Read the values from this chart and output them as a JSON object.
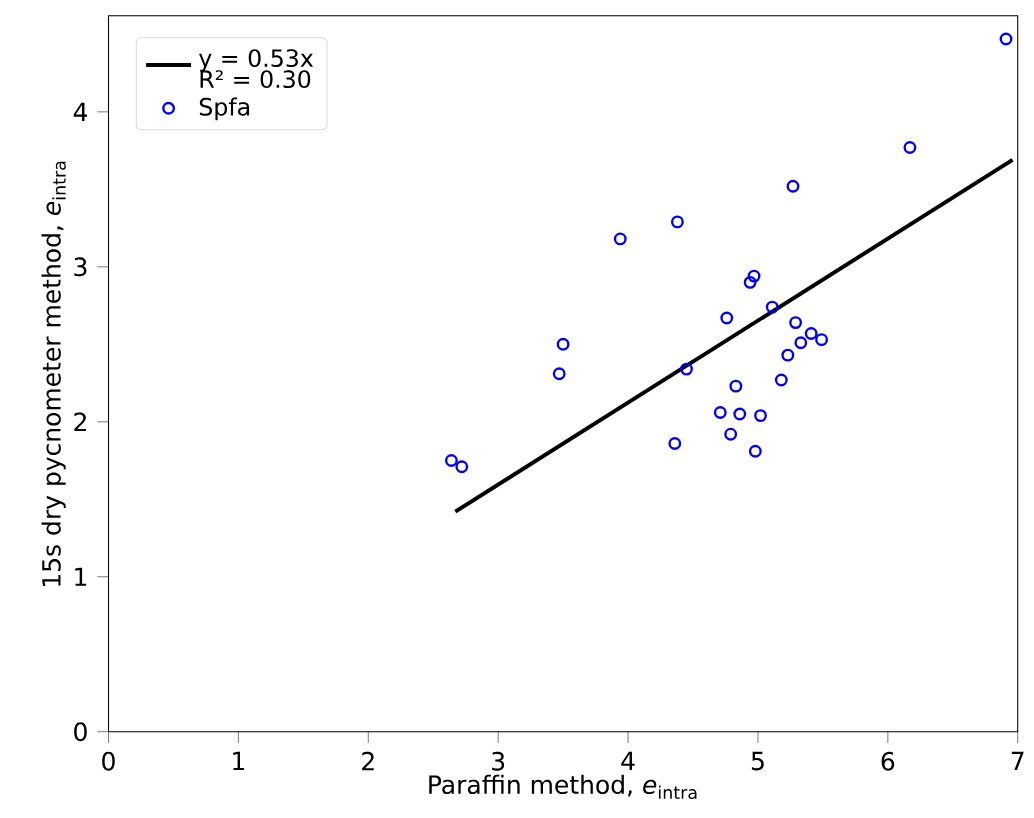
{
  "chart_data": {
    "type": "scatter",
    "xlabel": "Paraffin method, *e*$_{intra}$",
    "ylabel": "15s dry pycnometer method, *e*$_{intra}$",
    "annotations": [
      "R² = 0.30"
    ],
    "series": [
      {
        "type": "line",
        "name": "y = 0.53x",
        "color": "#000000",
        "marker": "none",
        "line_style": "solid",
        "x": [
          2.67,
          6.96
        ],
        "values": [
          1.42,
          3.69
        ]
      },
      {
        "name": "Spfa",
        "color": "#0000ff",
        "marker": "circle",
        "x": [
          6.91,
          6.17,
          5.27,
          4.38,
          3.94,
          4.97,
          4.94,
          4.76,
          5.11,
          5.29,
          5.41,
          5.49,
          5.33,
          5.23,
          5.18,
          3.5,
          3.47,
          4.45,
          4.83,
          4.71,
          4.86,
          5.02,
          4.79,
          4.36,
          4.98,
          2.64,
          2.72
        ],
        "values": [
          4.47,
          3.77,
          3.52,
          3.29,
          3.18,
          2.94,
          2.9,
          2.67,
          2.74,
          2.64,
          2.57,
          2.53,
          2.51,
          2.43,
          2.27,
          2.5,
          2.31,
          2.34,
          2.23,
          2.06,
          2.05,
          2.04,
          1.92,
          1.86,
          1.81,
          1.75,
          1.71
        ]
      }
    ],
    "xlim": [
      0,
      7
    ],
    "ylim": [
      0,
      4.62
    ],
    "xticks": [
      0,
      1,
      2,
      3,
      4,
      5,
      6,
      7
    ],
    "yticks": [
      0,
      1,
      2,
      3,
      4
    ],
    "grid": false,
    "legend": "top left"
  }
}
